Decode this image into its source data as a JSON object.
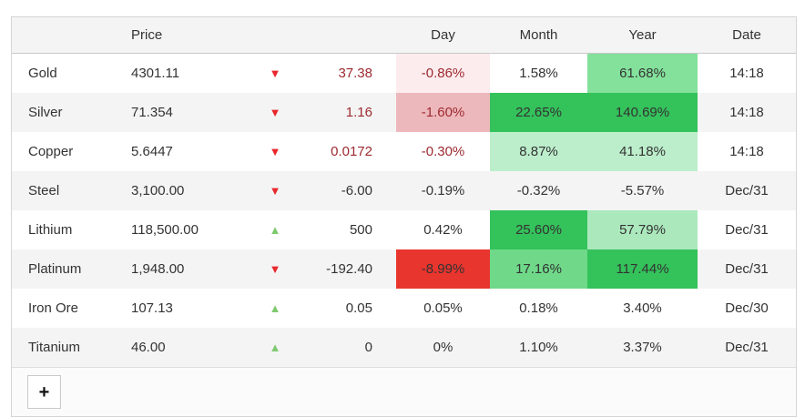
{
  "colors": {
    "dark": "#333333",
    "dark_red": "#9c2a30",
    "red_arrow": "#e8262b",
    "green_arrow": "#7ec96f",
    "pink_light": "#fdecee",
    "pink_medium": "#edb8bc",
    "red_strong": "#e8352e",
    "green_light": "#bceecb",
    "green_light2": "#abe9bd",
    "green_medium": "#83e19b",
    "green_medium2": "#6fd989",
    "green_strong": "#34c25b",
    "none": ""
  },
  "icons": {
    "down": "▼",
    "up": "▲"
  },
  "table": {
    "headers": {
      "name": "",
      "price": "Price",
      "arrow": "",
      "change": "",
      "day": "Day",
      "month": "Month",
      "year": "Year",
      "date": "Date"
    },
    "rows": [
      {
        "name": "Gold",
        "price": "4301.11",
        "direction": "down",
        "change": "37.38",
        "change_fg": "dark_red",
        "day": {
          "text": "-0.86%",
          "bg": "pink_light",
          "fg": "dark_red"
        },
        "month": {
          "text": "1.58%",
          "bg": "none",
          "fg": "dark"
        },
        "year": {
          "text": "61.68%",
          "bg": "green_medium",
          "fg": "dark"
        },
        "date": "14:18"
      },
      {
        "name": "Silver",
        "price": "71.354",
        "direction": "down",
        "change": "1.16",
        "change_fg": "dark_red",
        "day": {
          "text": "-1.60%",
          "bg": "pink_medium",
          "fg": "dark_red"
        },
        "month": {
          "text": "22.65%",
          "bg": "green_strong",
          "fg": "dark"
        },
        "year": {
          "text": "140.69%",
          "bg": "green_strong",
          "fg": "dark"
        },
        "date": "14:18"
      },
      {
        "name": "Copper",
        "price": "5.6447",
        "direction": "down",
        "change": "0.0172",
        "change_fg": "dark_red",
        "day": {
          "text": "-0.30%",
          "bg": "none",
          "fg": "dark_red"
        },
        "month": {
          "text": "8.87%",
          "bg": "green_light",
          "fg": "dark"
        },
        "year": {
          "text": "41.18%",
          "bg": "green_light",
          "fg": "dark"
        },
        "date": "14:18"
      },
      {
        "name": "Steel",
        "price": "3,100.00",
        "direction": "down",
        "change": "-6.00",
        "change_fg": "dark",
        "day": {
          "text": "-0.19%",
          "bg": "none",
          "fg": "dark"
        },
        "month": {
          "text": "-0.32%",
          "bg": "none",
          "fg": "dark"
        },
        "year": {
          "text": "-5.57%",
          "bg": "none",
          "fg": "dark"
        },
        "date": "Dec/31"
      },
      {
        "name": "Lithium",
        "price": "118,500.00",
        "direction": "up",
        "change": "500",
        "change_fg": "dark",
        "day": {
          "text": "0.42%",
          "bg": "none",
          "fg": "dark"
        },
        "month": {
          "text": "25.60%",
          "bg": "green_strong",
          "fg": "dark"
        },
        "year": {
          "text": "57.79%",
          "bg": "green_light2",
          "fg": "dark"
        },
        "date": "Dec/31"
      },
      {
        "name": "Platinum",
        "price": "1,948.00",
        "direction": "down",
        "change": "-192.40",
        "change_fg": "dark",
        "day": {
          "text": "-8.99%",
          "bg": "red_strong",
          "fg": "dark"
        },
        "month": {
          "text": "17.16%",
          "bg": "green_medium2",
          "fg": "dark"
        },
        "year": {
          "text": "117.44%",
          "bg": "green_strong",
          "fg": "dark"
        },
        "date": "Dec/31"
      },
      {
        "name": "Iron Ore",
        "price": "107.13",
        "direction": "up",
        "change": "0.05",
        "change_fg": "dark",
        "day": {
          "text": "0.05%",
          "bg": "none",
          "fg": "dark"
        },
        "month": {
          "text": "0.18%",
          "bg": "none",
          "fg": "dark"
        },
        "year": {
          "text": "3.40%",
          "bg": "none",
          "fg": "dark"
        },
        "date": "Dec/30"
      },
      {
        "name": "Titanium",
        "price": "46.00",
        "direction": "up",
        "change": "0",
        "change_fg": "dark",
        "day": {
          "text": "0%",
          "bg": "none",
          "fg": "dark"
        },
        "month": {
          "text": "1.10%",
          "bg": "none",
          "fg": "dark"
        },
        "year": {
          "text": "3.37%",
          "bg": "none",
          "fg": "dark"
        },
        "date": "Dec/31"
      }
    ],
    "add_button_label": "+"
  }
}
